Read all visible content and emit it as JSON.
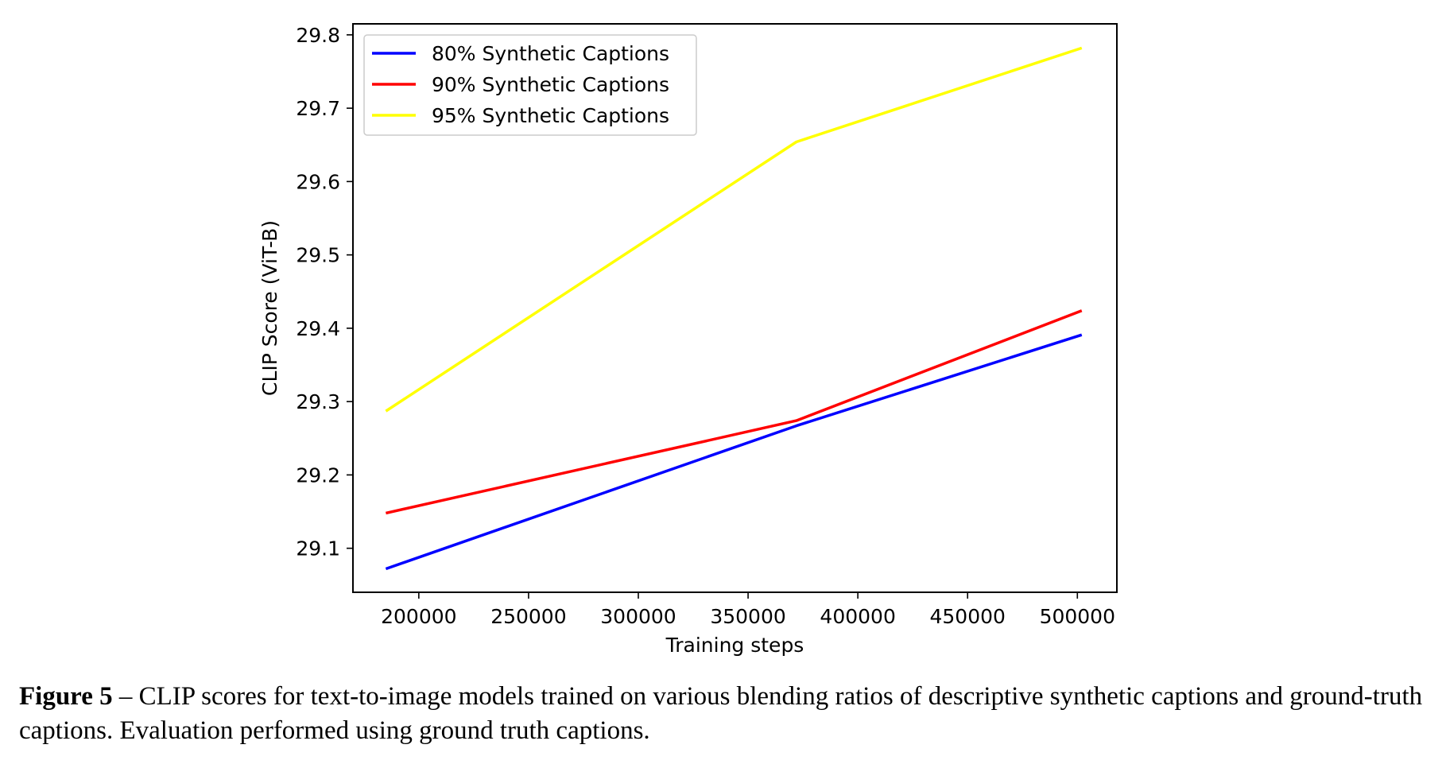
{
  "chart_data": {
    "type": "line",
    "xlabel": "Training steps",
    "ylabel": "CLIP Score (ViT-B)",
    "xlim": [
      170000,
      518000
    ],
    "ylim": [
      29.04,
      29.815
    ],
    "xticks": [
      200000,
      250000,
      300000,
      350000,
      400000,
      450000,
      500000
    ],
    "yticks": [
      29.1,
      29.2,
      29.3,
      29.4,
      29.5,
      29.6,
      29.7,
      29.8
    ],
    "xtick_labels": [
      "200000",
      "250000",
      "300000",
      "350000",
      "400000",
      "450000",
      "500000"
    ],
    "ytick_labels": [
      "29.1",
      "29.2",
      "29.3",
      "29.4",
      "29.5",
      "29.6",
      "29.7",
      "29.8"
    ],
    "grid": false,
    "legend_position": "top-left",
    "x": [
      185000,
      372000,
      502000
    ],
    "series": [
      {
        "name": "80% Synthetic Captions",
        "color": "#0000ff",
        "values": [
          29.072,
          29.267,
          29.391
        ]
      },
      {
        "name": "90% Synthetic Captions",
        "color": "#ff0000",
        "values": [
          29.148,
          29.274,
          29.424
        ]
      },
      {
        "name": "95% Synthetic Captions",
        "color": "#ffff00",
        "values": [
          29.287,
          29.654,
          29.782
        ]
      }
    ]
  },
  "caption": {
    "label": "Figure 5",
    "text": " – CLIP scores for text-to-image models trained on various blending ratios of descriptive synthetic captions and ground-truth captions. Evaluation performed using ground truth captions."
  }
}
